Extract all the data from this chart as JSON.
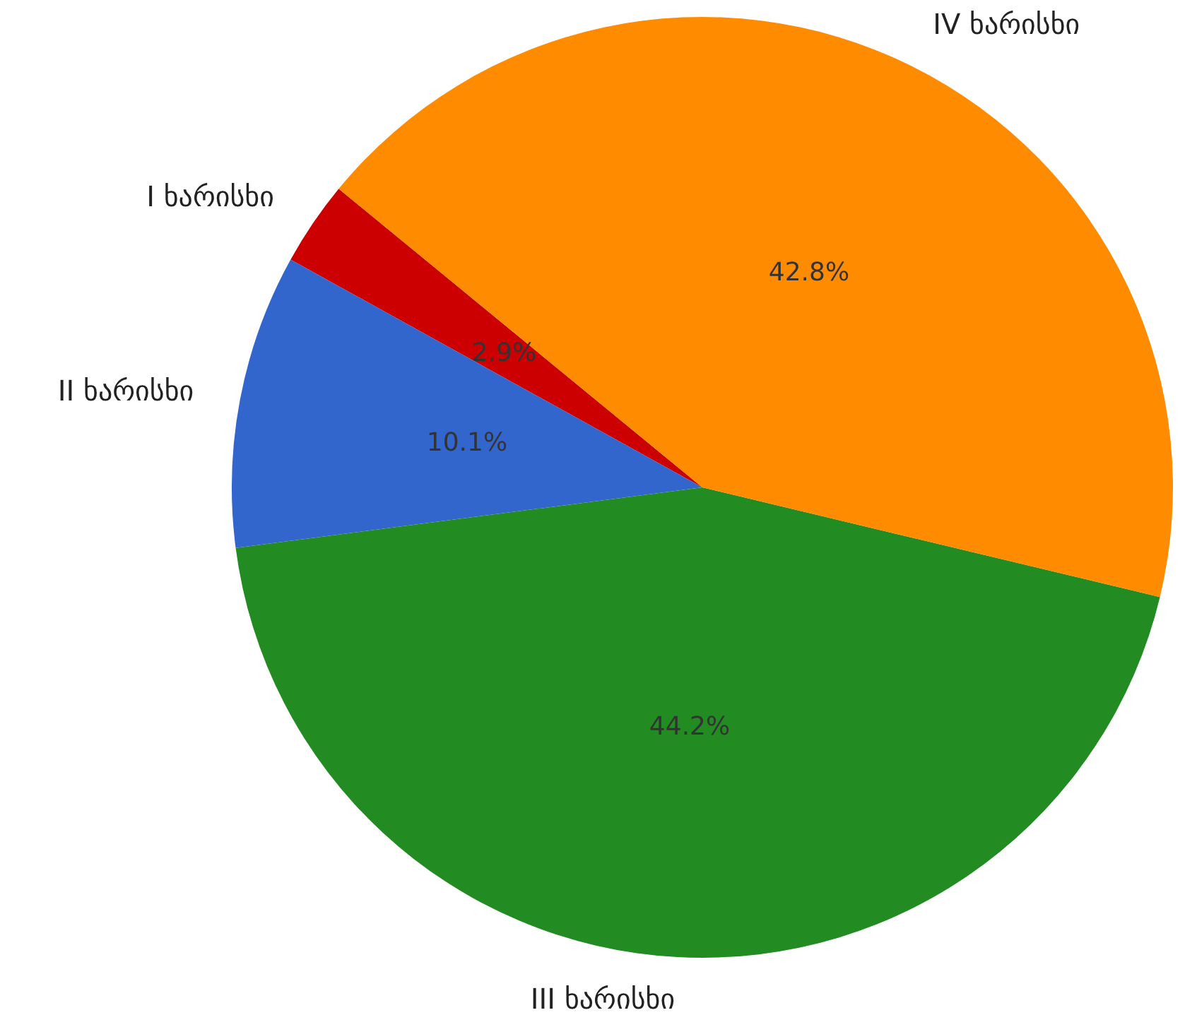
{
  "chart_data": {
    "type": "pie",
    "categories": [
      "I ხარისხი",
      "II ხარისხი",
      "III ხარისხი",
      "IV ხარისხი"
    ],
    "values": [
      2.9,
      10.1,
      44.2,
      42.8
    ],
    "value_labels": [
      "2.9%",
      "10.1%",
      "44.2%",
      "42.8%"
    ],
    "colors": [
      "#cc0000",
      "#3366cc",
      "#228b22",
      "#ff8c00"
    ],
    "legend": false
  }
}
